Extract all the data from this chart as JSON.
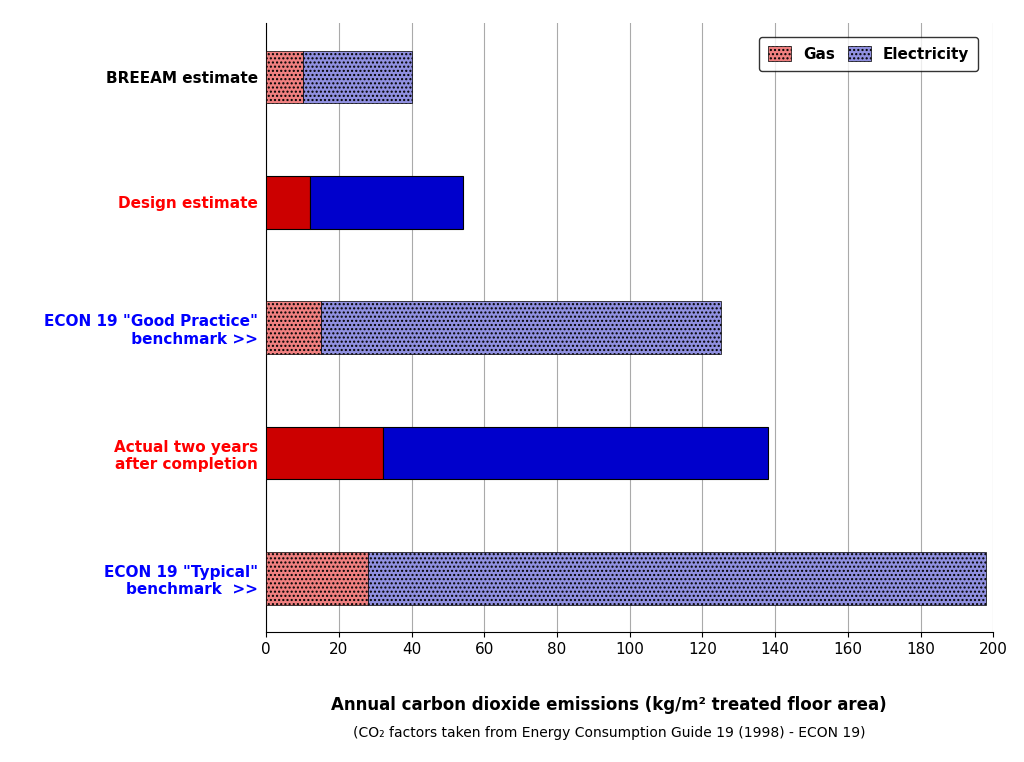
{
  "categories": [
    "BREEAM estimate",
    "Design estimate",
    "ECON 19 \"Good Practice\"\n     benchmark >>",
    "Actual two years\nafter completion",
    "ECON 19 \"Typical\"\n    benchmark  >>"
  ],
  "category_colors": [
    "black",
    "red",
    "blue",
    "red",
    "blue"
  ],
  "gas_values": [
    10,
    12,
    15,
    32,
    28
  ],
  "electricity_values": [
    30,
    42,
    110,
    106,
    170
  ],
  "gas_solid_rows": [
    1,
    3
  ],
  "electricity_solid_rows": [
    1,
    3
  ],
  "xlabel_main": "Annual carbon dioxide emissions (kg/m² treated floor area)",
  "xlabel_sub": "(CO₂ factors taken from Energy Consumption Guide 19 (1998) - ECON 19)",
  "xlim": [
    0,
    200
  ],
  "xticks": [
    0,
    20,
    40,
    60,
    80,
    100,
    120,
    140,
    160,
    180,
    200
  ],
  "legend_gas_label": "Gas",
  "legend_elec_label": "Electricity",
  "bar_height": 0.42,
  "background_color": "#ffffff",
  "grid_color": "#aaaaaa",
  "gas_hatch_facecolor": "#F08080",
  "gas_solid_facecolor": "#CC0000",
  "elec_hatch_facecolor": "#9090E0",
  "elec_solid_facecolor": "#0000CC"
}
